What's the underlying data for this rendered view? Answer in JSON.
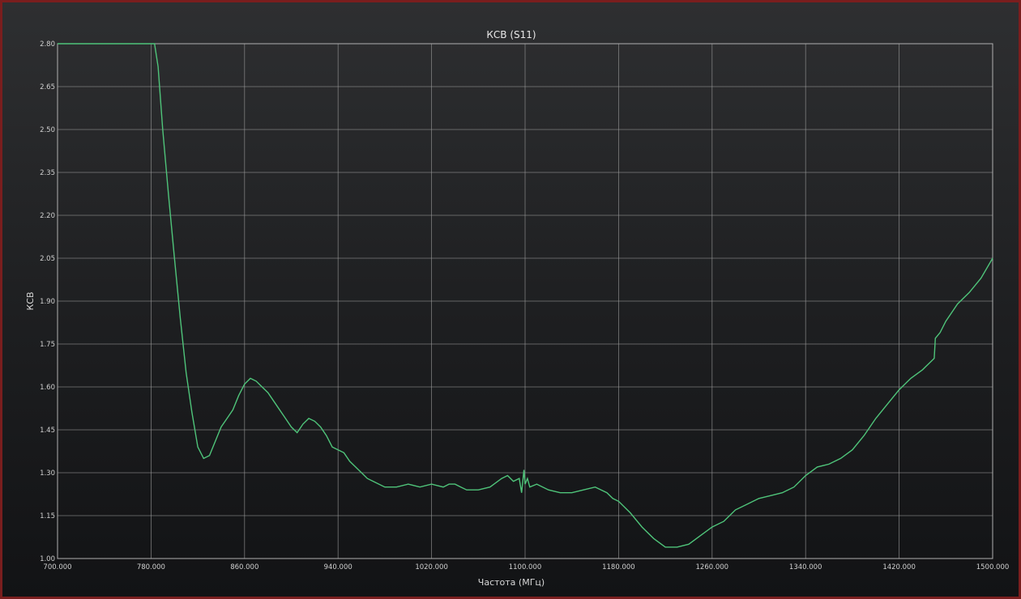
{
  "chart_data": {
    "type": "line",
    "title": "КСВ (S11)",
    "xlabel": "Частота (МГц)",
    "ylabel": "КСВ",
    "xlim": [
      700,
      1500
    ],
    "ylim": [
      1.0,
      2.8
    ],
    "x_ticks": [
      700,
      780,
      860,
      940,
      1020,
      1100,
      1180,
      1260,
      1340,
      1420,
      1500
    ],
    "x_tick_labels": [
      "700.000",
      "780.000",
      "860.000",
      "940.000",
      "1020.000",
      "1100.000",
      "1180.000",
      "1260.000",
      "1340.000",
      "1420.000",
      "1500.000"
    ],
    "y_ticks": [
      1.0,
      1.15,
      1.3,
      1.45,
      1.6,
      1.75,
      1.9,
      2.05,
      2.2,
      2.35,
      2.5,
      2.65,
      2.8
    ],
    "y_tick_labels": [
      "1.00",
      "1.15",
      "1.30",
      "1.45",
      "1.60",
      "1.75",
      "1.90",
      "2.05",
      "2.20",
      "2.35",
      "2.50",
      "2.65",
      "2.80"
    ],
    "grid": true,
    "series": [
      {
        "color": "#4fc47a",
        "x": [
          700,
          783,
          786,
          790,
          795,
          800,
          805,
          810,
          815,
          820,
          825,
          830,
          835,
          840,
          845,
          850,
          855,
          860,
          865,
          870,
          875,
          880,
          885,
          890,
          895,
          900,
          905,
          910,
          915,
          920,
          925,
          930,
          935,
          940,
          945,
          950,
          955,
          960,
          965,
          970,
          980,
          990,
          1000,
          1010,
          1020,
          1030,
          1035,
          1040,
          1045,
          1050,
          1060,
          1070,
          1080,
          1085,
          1090,
          1095,
          1097,
          1099,
          1100,
          1102,
          1104,
          1110,
          1120,
          1130,
          1140,
          1150,
          1160,
          1165,
          1170,
          1175,
          1180,
          1190,
          1200,
          1210,
          1220,
          1225,
          1230,
          1240,
          1250,
          1260,
          1270,
          1280,
          1290,
          1300,
          1310,
          1320,
          1330,
          1340,
          1350,
          1360,
          1370,
          1380,
          1390,
          1400,
          1410,
          1420,
          1430,
          1440,
          1445,
          1450,
          1451,
          1455,
          1460,
          1470,
          1480,
          1490,
          1500
        ],
        "y": [
          2.8,
          2.8,
          2.72,
          2.5,
          2.27,
          2.05,
          1.84,
          1.65,
          1.51,
          1.39,
          1.35,
          1.36,
          1.41,
          1.46,
          1.49,
          1.52,
          1.57,
          1.61,
          1.63,
          1.62,
          1.6,
          1.58,
          1.55,
          1.52,
          1.49,
          1.46,
          1.44,
          1.47,
          1.49,
          1.48,
          1.46,
          1.43,
          1.39,
          1.38,
          1.37,
          1.34,
          1.32,
          1.3,
          1.28,
          1.27,
          1.25,
          1.25,
          1.26,
          1.25,
          1.26,
          1.25,
          1.26,
          1.26,
          1.25,
          1.24,
          1.24,
          1.25,
          1.28,
          1.29,
          1.27,
          1.28,
          1.23,
          1.31,
          1.26,
          1.28,
          1.25,
          1.26,
          1.24,
          1.23,
          1.23,
          1.24,
          1.25,
          1.24,
          1.23,
          1.21,
          1.2,
          1.16,
          1.11,
          1.07,
          1.04,
          1.04,
          1.04,
          1.05,
          1.08,
          1.11,
          1.13,
          1.17,
          1.19,
          1.21,
          1.22,
          1.23,
          1.25,
          1.29,
          1.32,
          1.33,
          1.35,
          1.38,
          1.43,
          1.49,
          1.54,
          1.59,
          1.63,
          1.66,
          1.68,
          1.7,
          1.77,
          1.79,
          1.83,
          1.89,
          1.93,
          1.98,
          2.05
        ]
      }
    ]
  }
}
